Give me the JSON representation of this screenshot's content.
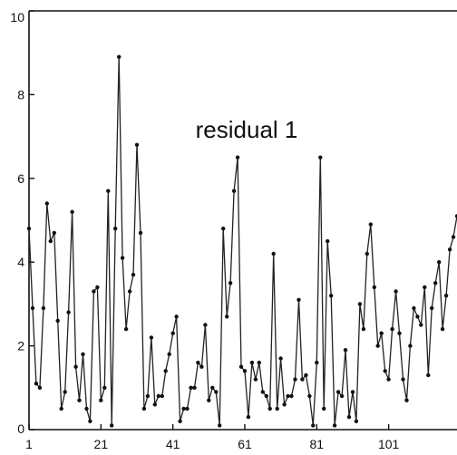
{
  "chart_data": {
    "type": "line",
    "title": "residual 1",
    "xlabel": "",
    "ylabel": "",
    "xlim": [
      1,
      120
    ],
    "ylim": [
      0,
      10
    ],
    "xticks": [
      1,
      21,
      41,
      61,
      81,
      101
    ],
    "yticks": [
      0,
      2,
      4,
      6,
      8,
      10
    ],
    "grid": false,
    "legend": "none",
    "series": [
      {
        "x": [
          1,
          2,
          3,
          4,
          5,
          6,
          7,
          8,
          9,
          10,
          11,
          12,
          13,
          14,
          15,
          16,
          17,
          18,
          19,
          20,
          21,
          22,
          23,
          24,
          25,
          26,
          27,
          28,
          29,
          30,
          31,
          32,
          33,
          34,
          35,
          36,
          37,
          38,
          39,
          40,
          41,
          42,
          43,
          44,
          45,
          46,
          47,
          48,
          49,
          50,
          51,
          52,
          53,
          54,
          55,
          56,
          57,
          58,
          59,
          60,
          61,
          62,
          63,
          64,
          65,
          66,
          67,
          68,
          69,
          70,
          71,
          72,
          73,
          74,
          75,
          76,
          77,
          78,
          79,
          80,
          81,
          82,
          83,
          84,
          85,
          86,
          87,
          88,
          89,
          90,
          91,
          92,
          93,
          94,
          95,
          96,
          97,
          98,
          99,
          100,
          101,
          102,
          103,
          104,
          105,
          106,
          107,
          108,
          109,
          110,
          111,
          112,
          113,
          114,
          115,
          116,
          117,
          118,
          119,
          120
        ],
        "values": [
          4.8,
          2.9,
          1.1,
          1.0,
          2.9,
          5.4,
          4.5,
          4.7,
          2.6,
          0.5,
          0.9,
          2.8,
          5.2,
          1.5,
          0.7,
          1.8,
          0.5,
          0.2,
          3.3,
          3.4,
          0.7,
          1.0,
          5.7,
          0.1,
          4.8,
          8.9,
          4.1,
          2.4,
          3.3,
          3.7,
          6.8,
          4.7,
          0.5,
          0.8,
          2.2,
          0.6,
          0.8,
          0.8,
          1.4,
          1.8,
          2.3,
          2.7,
          0.2,
          0.5,
          0.5,
          1.0,
          1.0,
          1.6,
          1.5,
          2.5,
          0.7,
          1.0,
          0.9,
          0.1,
          4.8,
          2.7,
          3.5,
          5.7,
          6.5,
          1.5,
          1.4,
          0.3,
          1.6,
          1.2,
          1.6,
          0.9,
          0.8,
          0.5,
          4.2,
          0.5,
          1.7,
          0.6,
          0.8,
          0.8,
          1.2,
          3.1,
          1.2,
          1.3,
          0.8,
          0.1,
          1.6,
          6.5,
          0.5,
          4.5,
          3.2,
          0.1,
          0.9,
          0.8,
          1.9,
          0.3,
          0.9,
          0.2,
          3.0,
          2.4,
          4.2,
          4.9,
          3.4,
          2.0,
          2.3,
          1.4,
          1.2,
          2.4,
          3.3,
          2.3,
          1.2,
          0.7,
          2.0,
          2.9,
          2.7,
          2.5,
          3.4,
          1.3,
          2.9,
          3.5,
          4.0,
          2.4,
          3.2,
          4.3,
          4.6,
          5.1
        ]
      }
    ]
  }
}
